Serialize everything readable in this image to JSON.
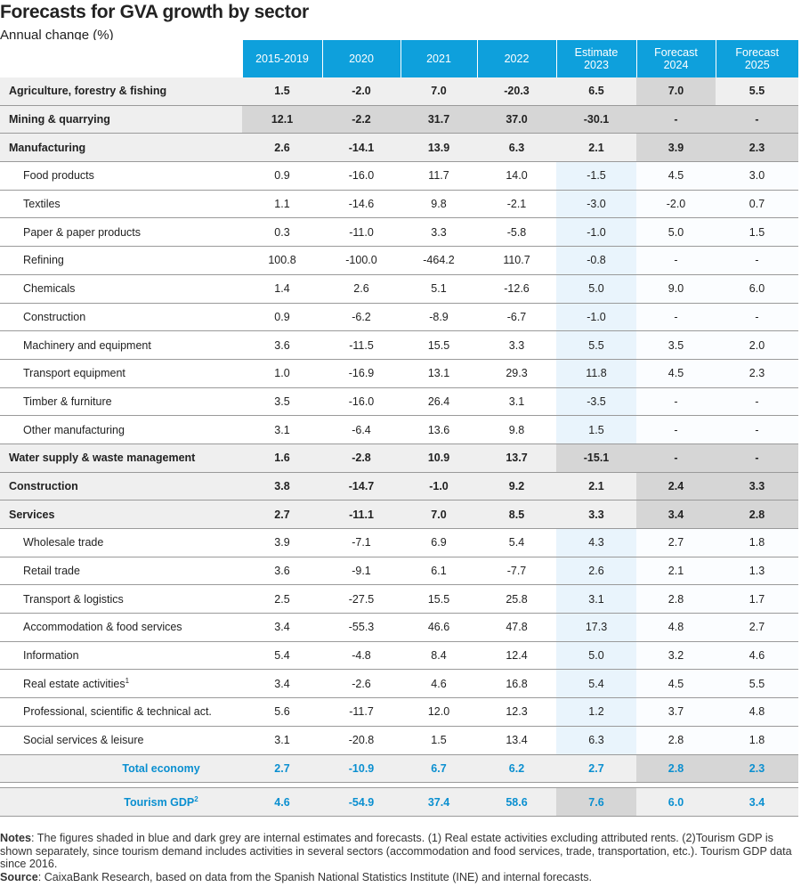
{
  "title": "Forecasts for GVA growth by sector",
  "subtitle": "Annual change (%)",
  "columns": [
    "2015-2019",
    "2020",
    "2021",
    "2022",
    "Estimate 2023",
    "Forecast 2024",
    "Forecast 2025"
  ],
  "columns_split": [
    [
      "2015-2019"
    ],
    [
      "2020"
    ],
    [
      "2021"
    ],
    [
      "2022"
    ],
    [
      "Estimate",
      "2023"
    ],
    [
      "Forecast",
      "2024"
    ],
    [
      "Forecast",
      "2025"
    ]
  ],
  "rows": [
    {
      "label": "Agriculture, forestry & fishing",
      "type": "major",
      "values": [
        "1.5",
        "-2.0",
        "7.0",
        "-20.3",
        "6.5",
        "7.0",
        "5.5"
      ],
      "shade": [
        "lg",
        "lg",
        "lg",
        "lg",
        "lg",
        "dg",
        "lg"
      ]
    },
    {
      "label": "Mining & quarrying",
      "type": "major",
      "values": [
        "12.1",
        "-2.2",
        "31.7",
        "37.0",
        "-30.1",
        "-",
        "-"
      ],
      "shade": [
        "dg",
        "dg",
        "dg",
        "dg",
        "dg",
        "dg",
        "dg"
      ]
    },
    {
      "label": "Manufacturing",
      "type": "major",
      "values": [
        "2.6",
        "-14.1",
        "13.9",
        "6.3",
        "2.1",
        "3.9",
        "2.3"
      ],
      "shade": [
        "lg",
        "lg",
        "lg",
        "lg",
        "lg",
        "dg",
        "dg"
      ]
    },
    {
      "label": "Food products",
      "type": "sub",
      "values": [
        "0.9",
        "-16.0",
        "11.7",
        "14.0",
        "-1.5",
        "4.5",
        "3.0"
      ]
    },
    {
      "label": "Textiles",
      "type": "sub",
      "values": [
        "1.1",
        "-14.6",
        "9.8",
        "-2.1",
        "-3.0",
        "-2.0",
        "0.7"
      ]
    },
    {
      "label": "Paper & paper products",
      "type": "sub",
      "values": [
        "0.3",
        "-11.0",
        "3.3",
        "-5.8",
        "-1.0",
        "5.0",
        "1.5"
      ]
    },
    {
      "label": "Refining",
      "type": "sub",
      "values": [
        "100.8",
        "-100.0",
        "-464.2",
        "110.7",
        "-0.8",
        "-",
        "-"
      ]
    },
    {
      "label": "Chemicals",
      "type": "sub",
      "values": [
        "1.4",
        "2.6",
        "5.1",
        "-12.6",
        "5.0",
        "9.0",
        "6.0"
      ]
    },
    {
      "label": "Construction",
      "type": "sub",
      "values": [
        "0.9",
        "-6.2",
        "-8.9",
        "-6.7",
        "-1.0",
        "-",
        "-"
      ]
    },
    {
      "label": "Machinery and equipment",
      "type": "sub",
      "values": [
        "3.6",
        "-11.5",
        "15.5",
        "3.3",
        "5.5",
        "3.5",
        "2.0"
      ]
    },
    {
      "label": "Transport equipment",
      "type": "sub",
      "values": [
        "1.0",
        "-16.9",
        "13.1",
        "29.3",
        "11.8",
        "4.5",
        "2.3"
      ]
    },
    {
      "label": "Timber & furniture",
      "type": "sub",
      "values": [
        "3.5",
        "-16.0",
        "26.4",
        "3.1",
        "-3.5",
        "-",
        "-"
      ]
    },
    {
      "label": "Other manufacturing",
      "type": "sub",
      "values": [
        "3.1",
        "-6.4",
        "13.6",
        "9.8",
        "1.5",
        "-",
        "-"
      ]
    },
    {
      "label": "Water supply & waste management",
      "type": "major",
      "values": [
        "1.6",
        "-2.8",
        "10.9",
        "13.7",
        "-15.1",
        "-",
        "-"
      ],
      "shade": [
        "lg",
        "lg",
        "lg",
        "lg",
        "dg",
        "dg",
        "dg"
      ]
    },
    {
      "label": "Construction",
      "type": "major",
      "values": [
        "3.8",
        "-14.7",
        "-1.0",
        "9.2",
        "2.1",
        "2.4",
        "3.3"
      ],
      "shade": [
        "lg",
        "lg",
        "lg",
        "lg",
        "lg",
        "dg",
        "dg"
      ]
    },
    {
      "label": "Services",
      "type": "major",
      "values": [
        "2.7",
        "-11.1",
        "7.0",
        "8.5",
        "3.3",
        "3.4",
        "2.8"
      ],
      "shade": [
        "lg",
        "lg",
        "lg",
        "lg",
        "lg",
        "dg",
        "dg"
      ]
    },
    {
      "label": "Wholesale trade",
      "type": "sub",
      "values": [
        "3.9",
        "-7.1",
        "6.9",
        "5.4",
        "4.3",
        "2.7",
        "1.8"
      ]
    },
    {
      "label": "Retail trade",
      "type": "sub",
      "values": [
        "3.6",
        "-9.1",
        "6.1",
        "-7.7",
        "2.6",
        "2.1",
        "1.3"
      ]
    },
    {
      "label": "Transport & logistics",
      "type": "sub",
      "values": [
        "2.5",
        "-27.5",
        "15.5",
        "25.8",
        "3.1",
        "2.8",
        "1.7"
      ]
    },
    {
      "label": "Accommodation & food services",
      "type": "sub",
      "values": [
        "3.4",
        "-55.3",
        "46.6",
        "47.8",
        "17.3",
        "4.8",
        "2.7"
      ]
    },
    {
      "label": "Information",
      "type": "sub",
      "values": [
        "5.4",
        "-4.8",
        "8.4",
        "12.4",
        "5.0",
        "3.2",
        "4.6"
      ]
    },
    {
      "label": "Real estate activities",
      "sup": "1",
      "type": "sub",
      "values": [
        "3.4",
        "-2.6",
        "4.6",
        "16.8",
        "5.4",
        "4.5",
        "5.5"
      ]
    },
    {
      "label": "Professional, scientific & technical act.",
      "type": "sub",
      "values": [
        "5.6",
        "-11.7",
        "12.0",
        "12.3",
        "1.2",
        "3.7",
        "4.8"
      ]
    },
    {
      "label": "Social services & leisure",
      "type": "sub",
      "values": [
        "3.1",
        "-20.8",
        "1.5",
        "13.4",
        "6.3",
        "2.8",
        "1.8"
      ]
    },
    {
      "label": "Total economy",
      "type": "total",
      "values": [
        "2.7",
        "-10.9",
        "6.7",
        "6.2",
        "2.7",
        "2.8",
        "2.3"
      ],
      "shade": [
        "lg",
        "lg",
        "lg",
        "lg",
        "lg",
        "dg",
        "dg"
      ]
    },
    {
      "label": "Tourism GDP",
      "sup": "2",
      "type": "total",
      "spacer_before": true,
      "values": [
        "4.6",
        "-54.9",
        "37.4",
        "58.6",
        "7.6",
        "6.0",
        "3.4"
      ],
      "shade": [
        "lg",
        "lg",
        "lg",
        "lg",
        "dg",
        "lg",
        "lg"
      ]
    }
  ],
  "notes": {
    "notes_label": "Notes",
    "notes_text": ": The figures shaded in blue and dark grey are internal estimates and forecasts. (1) Real estate activities excluding attributed rents. (2)Tourism GDP is shown separately, since tourism demand includes activities in several sectors (accommodation and food services, trade, transportation, etc.). Tourism GDP data since 2016.",
    "source_label": "Source",
    "source_text": ": CaixaBank Research, based on data from the Spanish National Statistics Institute (INE) and internal forecasts."
  }
}
